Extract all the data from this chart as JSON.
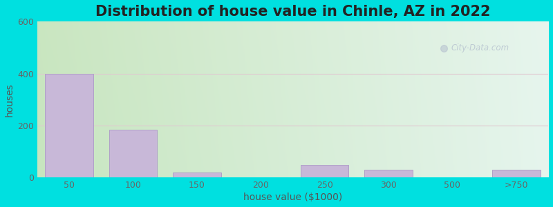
{
  "title": "Distribution of house value in Chinle, AZ in 2022",
  "xlabel": "house value ($1000)",
  "ylabel": "houses",
  "bar_labels": [
    "50",
    "100",
    "150",
    "200",
    "250",
    "300",
    "500",
    ">750"
  ],
  "bar_values": [
    400,
    183,
    20,
    0,
    47,
    30,
    0,
    30
  ],
  "bar_color": "#c8b8d8",
  "bar_edge_color": "#b0a0c8",
  "ylim": [
    0,
    600
  ],
  "yticks": [
    0,
    200,
    400,
    600
  ],
  "background_outer": "#00e0e0",
  "background_top_left": "#c8e0c0",
  "background_top_right": "#e8eef8",
  "background_bottom_left": "#daeeda",
  "background_bottom_right": "#f8f8ff",
  "title_fontsize": 15,
  "axis_label_fontsize": 10,
  "tick_fontsize": 9,
  "watermark_text": "City-Data.com",
  "bar_width": 0.75
}
